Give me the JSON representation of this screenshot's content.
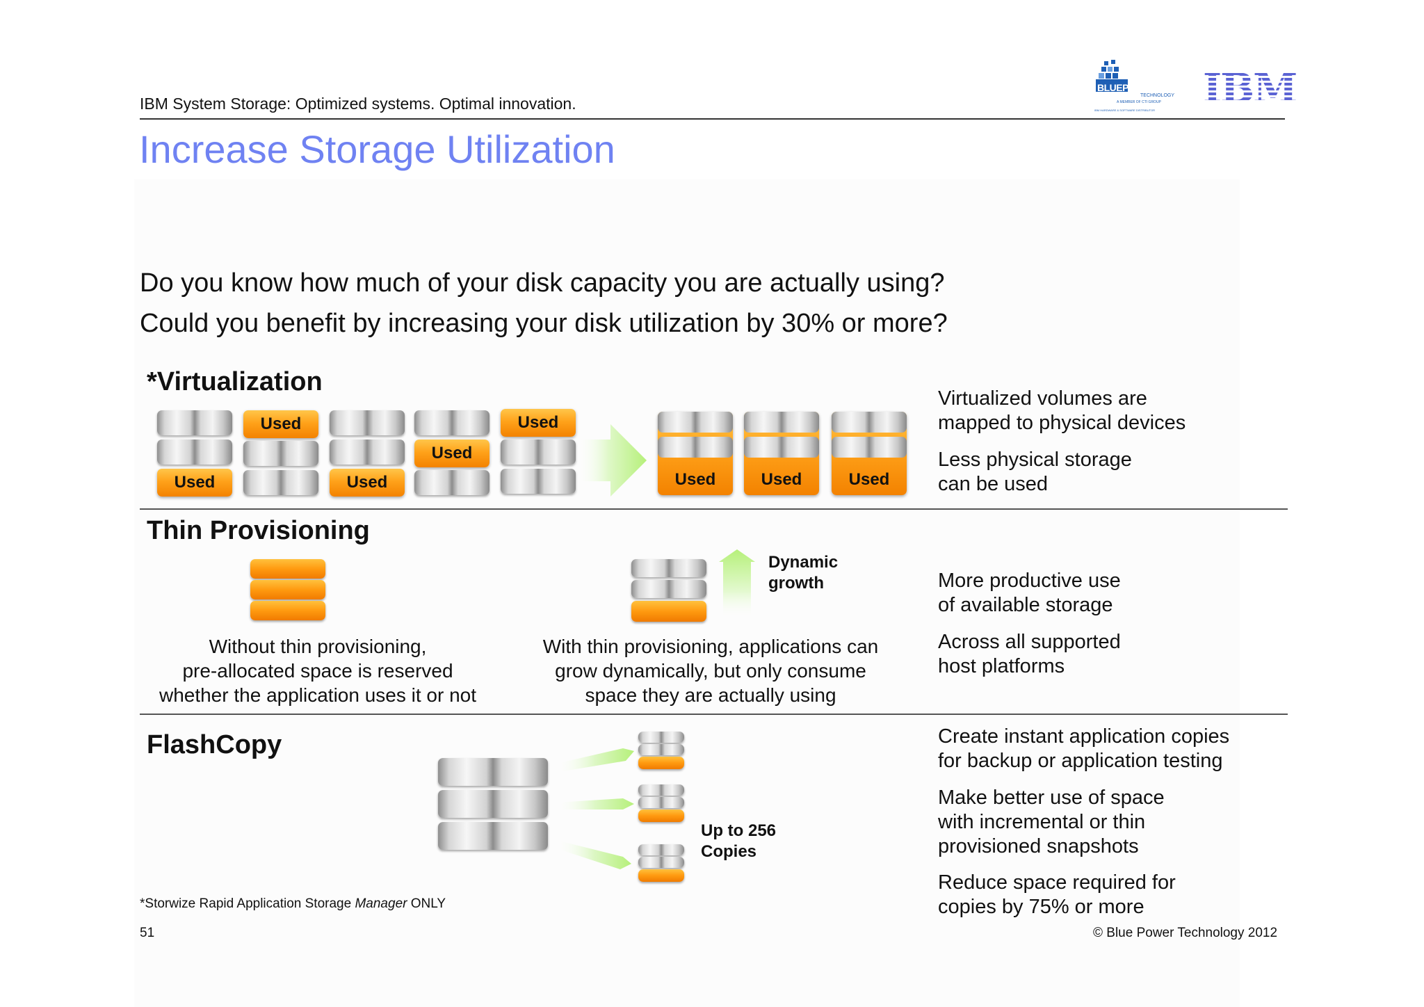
{
  "header": {
    "tagline": "IBM System Storage: Optimized systems. Optimal innovation.",
    "logo_bluepower": {
      "name": "BLUEPOWER",
      "sub": "TECHNOLOGY",
      "line1": "A MEMBER OF CTI GROUP",
      "line2": "IBM HARDWARE & SOFTWARE DISTRIBUTOR"
    },
    "logo_ibm": "IBM"
  },
  "title": "Increase Storage Utilization",
  "questions": [
    "Do you know how much of your disk capacity you are actually using?",
    "Could you benefit by increasing your disk utilization by 30% or more?"
  ],
  "virtualization": {
    "title": "*Virtualization",
    "used_label": "Used",
    "desc": [
      [
        "Virtualized volumes are",
        "mapped to physical devices"
      ],
      [
        "Less physical storage",
        "can be used"
      ]
    ]
  },
  "thin_provisioning": {
    "title": "Thin Provisioning",
    "growth_label": [
      "Dynamic",
      "growth"
    ],
    "caption_without": [
      "Without thin provisioning,",
      "pre-allocated space is reserved",
      "whether the application uses it or not"
    ],
    "caption_with": [
      "With thin provisioning, applications can",
      "grow dynamically, but only consume",
      "space they are actually using"
    ],
    "desc": [
      [
        "More productive use",
        "of available storage"
      ],
      [
        "Across all supported",
        "host platforms"
      ]
    ]
  },
  "flashcopy": {
    "title": "FlashCopy",
    "copies_label": [
      "Up to 256",
      "Copies"
    ],
    "desc": [
      [
        "Create instant application copies",
        "for backup or application testing"
      ],
      [
        "Make better use of space",
        "with incremental or thin",
        "provisioned snapshots"
      ],
      [
        "Reduce space required for",
        "copies by 75% or more"
      ]
    ]
  },
  "footer": {
    "footnote_pre": "*Storwize Rapid Application Storage ",
    "footnote_italic": "Manager",
    "footnote_post": " ONLY",
    "page": "51",
    "copyright": "© Blue Power Technology 2012"
  }
}
